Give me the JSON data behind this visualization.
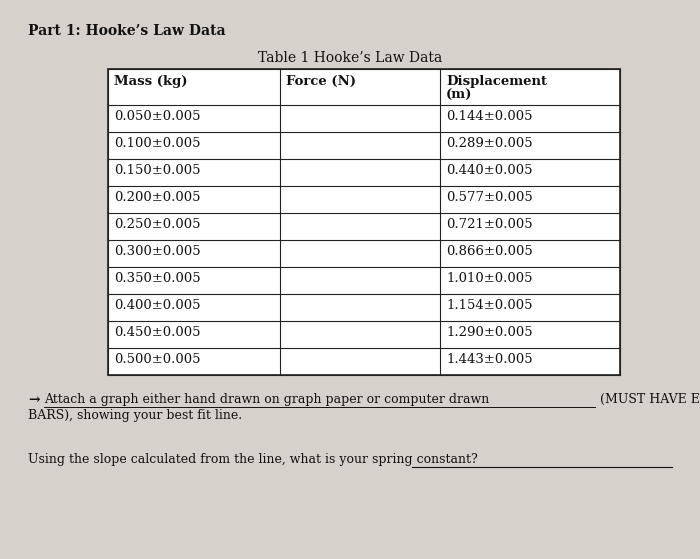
{
  "title_part": "Part 1: Hooke’s Law Data",
  "table_title": "Table 1 Hooke’s Law Data",
  "col_headers": [
    "Mass (kg)",
    "Force (N)",
    "Displacement\n(m)"
  ],
  "mass_data": [
    "0.050±0.005",
    "0.100±0.005",
    "0.150±0.005",
    "0.200±0.005",
    "0.250±0.005",
    "0.300±0.005",
    "0.350±0.005",
    "0.400±0.005",
    "0.450±0.005",
    "0.500±0.005"
  ],
  "force_data": [
    "",
    "",
    "",
    "",
    "",
    "",
    "",
    "",
    "",
    ""
  ],
  "displacement_data": [
    "0.144±0.005",
    "0.289±0.005",
    "0.440±0.005",
    "0.577±0.005",
    "0.721±0.005",
    "0.866±0.005",
    "1.010±0.005",
    "1.154±0.005",
    "1.290±0.005",
    "1.443±0.005"
  ],
  "underline_text": "Attach a graph either hand drawn on graph paper or computer drawn",
  "rest_text": " (MUST HAVE ERROR",
  "line2_text": "BARS), showing your best fit line.",
  "arrow_char": "→",
  "bottom_text": "Using the slope calculated from the line, what is your spring constant?",
  "bg_color": "#d6d2cb",
  "table_bg": "#ffffff",
  "border_color": "#222222",
  "text_color": "#111111",
  "font_size_part": 10,
  "font_size_table_title": 10,
  "font_size_table": 9.5,
  "font_size_body": 9
}
